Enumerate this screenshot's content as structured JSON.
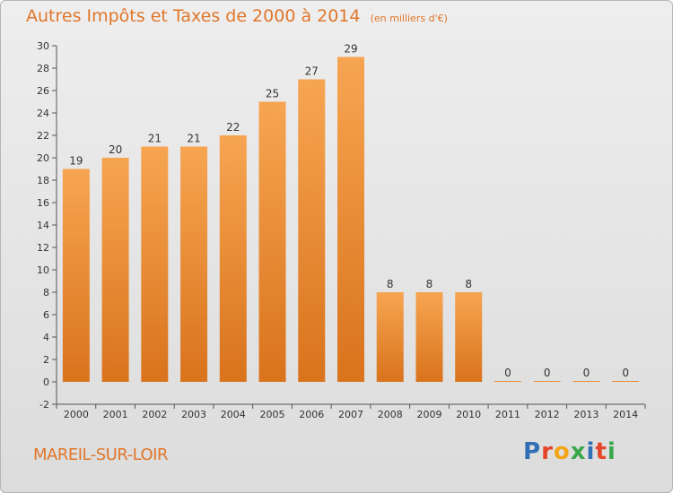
{
  "chart_data": {
    "type": "bar",
    "title": "Autres Impôts et Taxes de 2000 à 2014",
    "unit_note": "(en milliers d'€)",
    "categories": [
      "2000",
      "2001",
      "2002",
      "2003",
      "2004",
      "2005",
      "2006",
      "2007",
      "2008",
      "2009",
      "2010",
      "2011",
      "2012",
      "2013",
      "2014"
    ],
    "values": [
      19,
      20,
      21,
      21,
      22,
      25,
      27,
      29,
      8,
      8,
      8,
      0,
      0,
      0,
      0
    ],
    "ylim": [
      -2,
      30
    ],
    "yticks": [
      -2,
      0,
      2,
      4,
      6,
      8,
      10,
      12,
      14,
      16,
      18,
      20,
      22,
      24,
      26,
      28,
      30
    ],
    "grid": false,
    "bar_color": "#f0892f"
  },
  "footer": {
    "commune": "MAREIL-SUR-LOIR",
    "logo_letters": [
      {
        "ch": "P",
        "color": "#2f6fb3"
      },
      {
        "ch": "r",
        "color": "#e5462a"
      },
      {
        "ch": "o",
        "color": "#f2a516"
      },
      {
        "ch": "x",
        "color": "#3aa84a"
      },
      {
        "ch": "i",
        "color": "#2f6fb3"
      },
      {
        "ch": "t",
        "color": "#e5462a"
      },
      {
        "ch": "i",
        "color": "#3aa84a"
      }
    ]
  }
}
